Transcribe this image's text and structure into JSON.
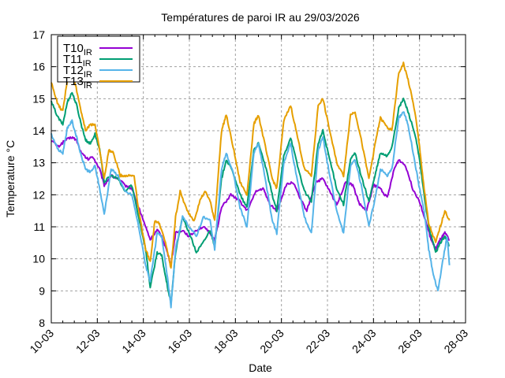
{
  "chart_data": {
    "type": "line",
    "title": "Températures de paroi IR au 29/03/2026",
    "xlabel": "Date",
    "ylabel": "Temperature °C",
    "xlim": [
      0,
      18
    ],
    "ylim": [
      8,
      17
    ],
    "grid": true,
    "legend_position": "top-left",
    "x_ticks": [
      {
        "value": 0,
        "label": "10-03"
      },
      {
        "value": 2,
        "label": "12-03"
      },
      {
        "value": 4,
        "label": "14-03"
      },
      {
        "value": 6,
        "label": "16-03"
      },
      {
        "value": 8,
        "label": "18-03"
      },
      {
        "value": 10,
        "label": "20-03"
      },
      {
        "value": 12,
        "label": "22-03"
      },
      {
        "value": 14,
        "label": "24-03"
      },
      {
        "value": 16,
        "label": "26-03"
      },
      {
        "value": 18,
        "label": "28-03"
      }
    ],
    "y_ticks": [
      "8",
      "9",
      "10",
      "11",
      "12",
      "13",
      "14",
      "15",
      "16",
      "17"
    ],
    "x_unit_note": "days since 10-03",
    "series": [
      {
        "name": "T10",
        "subscript": "IR",
        "color": "#9400d3",
        "points": [
          [
            0,
            13.7
          ],
          [
            0.3,
            13.5
          ],
          [
            0.6,
            13.7
          ],
          [
            0.9,
            13.8
          ],
          [
            1.1,
            13.7
          ],
          [
            1.3,
            13.3
          ],
          [
            1.6,
            13.1
          ],
          [
            1.8,
            13.2
          ],
          [
            2.1,
            12.8
          ],
          [
            2.3,
            12.3
          ],
          [
            2.6,
            12.6
          ],
          [
            2.9,
            12.5
          ],
          [
            3.2,
            12.3
          ],
          [
            3.5,
            12.2
          ],
          [
            3.8,
            11.6
          ],
          [
            4.1,
            11.0
          ],
          [
            4.3,
            10.6
          ],
          [
            4.6,
            10.9
          ],
          [
            4.8,
            10.7
          ],
          [
            5.0,
            10.3
          ],
          [
            5.2,
            9.8
          ],
          [
            5.4,
            10.8
          ],
          [
            5.7,
            10.9
          ],
          [
            6.0,
            10.7
          ],
          [
            6.3,
            10.9
          ],
          [
            6.6,
            11.0
          ],
          [
            6.9,
            10.8
          ],
          [
            7.1,
            10.6
          ],
          [
            7.4,
            11.6
          ],
          [
            7.8,
            12.0
          ],
          [
            8.2,
            11.8
          ],
          [
            8.5,
            11.5
          ],
          [
            8.9,
            12.1
          ],
          [
            9.2,
            12.2
          ],
          [
            9.5,
            11.7
          ],
          [
            9.8,
            11.5
          ],
          [
            10.2,
            12.3
          ],
          [
            10.5,
            12.4
          ],
          [
            10.8,
            11.9
          ],
          [
            11.1,
            11.5
          ],
          [
            11.5,
            12.4
          ],
          [
            11.8,
            12.5
          ],
          [
            12.1,
            12.1
          ],
          [
            12.4,
            11.7
          ],
          [
            12.8,
            12.4
          ],
          [
            13.1,
            12.3
          ],
          [
            13.4,
            11.7
          ],
          [
            13.7,
            11.5
          ],
          [
            14.0,
            12.3
          ],
          [
            14.3,
            12.2
          ],
          [
            14.6,
            11.9
          ],
          [
            14.9,
            12.8
          ],
          [
            15.1,
            13.1
          ],
          [
            15.4,
            12.9
          ],
          [
            15.7,
            12.2
          ],
          [
            16.0,
            11.8
          ],
          [
            16.3,
            11.1
          ],
          [
            16.5,
            10.6
          ],
          [
            16.7,
            10.3
          ],
          [
            16.9,
            10.6
          ],
          [
            17.1,
            10.8
          ],
          [
            17.3,
            10.6
          ]
        ]
      },
      {
        "name": "T11",
        "subscript": "IR",
        "color": "#009e73",
        "points": [
          [
            0,
            14.9
          ],
          [
            0.3,
            14.4
          ],
          [
            0.5,
            14.2
          ],
          [
            0.7,
            14.9
          ],
          [
            0.9,
            15.2
          ],
          [
            1.1,
            14.8
          ],
          [
            1.3,
            14.2
          ],
          [
            1.5,
            13.7
          ],
          [
            1.7,
            13.6
          ],
          [
            1.9,
            13.9
          ],
          [
            2.1,
            13.4
          ],
          [
            2.3,
            12.4
          ],
          [
            2.6,
            12.6
          ],
          [
            2.9,
            12.5
          ],
          [
            3.2,
            12.1
          ],
          [
            3.5,
            12.3
          ],
          [
            3.8,
            11.3
          ],
          [
            4.1,
            10.3
          ],
          [
            4.3,
            9.1
          ],
          [
            4.6,
            10.2
          ],
          [
            4.8,
            10.1
          ],
          [
            5.0,
            9.3
          ],
          [
            5.2,
            8.6
          ],
          [
            5.4,
            10.2
          ],
          [
            5.7,
            11.3
          ],
          [
            6.0,
            10.8
          ],
          [
            6.3,
            10.2
          ],
          [
            6.6,
            10.5
          ],
          [
            6.9,
            10.9
          ],
          [
            7.1,
            10.4
          ],
          [
            7.4,
            12.5
          ],
          [
            7.6,
            13.1
          ],
          [
            7.9,
            12.7
          ],
          [
            8.2,
            12.0
          ],
          [
            8.5,
            11.6
          ],
          [
            8.8,
            13.4
          ],
          [
            9.0,
            13.6
          ],
          [
            9.3,
            12.9
          ],
          [
            9.6,
            12.0
          ],
          [
            9.8,
            11.5
          ],
          [
            10.1,
            13.2
          ],
          [
            10.4,
            13.8
          ],
          [
            10.7,
            12.9
          ],
          [
            11.0,
            12.1
          ],
          [
            11.3,
            11.8
          ],
          [
            11.6,
            13.6
          ],
          [
            11.8,
            14.0
          ],
          [
            12.1,
            13.1
          ],
          [
            12.4,
            12.2
          ],
          [
            12.7,
            11.7
          ],
          [
            13.0,
            13.1
          ],
          [
            13.2,
            13.3
          ],
          [
            13.5,
            12.5
          ],
          [
            13.8,
            11.8
          ],
          [
            14.1,
            12.7
          ],
          [
            14.3,
            13.3
          ],
          [
            14.6,
            13.2
          ],
          [
            14.8,
            13.5
          ],
          [
            15.1,
            14.7
          ],
          [
            15.3,
            15.0
          ],
          [
            15.5,
            14.6
          ],
          [
            15.8,
            13.9
          ],
          [
            16.0,
            13.1
          ],
          [
            16.2,
            12.0
          ],
          [
            16.4,
            11.0
          ],
          [
            16.7,
            10.2
          ],
          [
            16.9,
            10.5
          ],
          [
            17.1,
            10.7
          ],
          [
            17.3,
            10.4
          ]
        ]
      },
      {
        "name": "T12",
        "subscript": "IR",
        "color": "#56b4e9",
        "points": [
          [
            0,
            13.9
          ],
          [
            0.3,
            13.4
          ],
          [
            0.5,
            13.3
          ],
          [
            0.7,
            14.1
          ],
          [
            0.9,
            14.3
          ],
          [
            1.1,
            13.8
          ],
          [
            1.3,
            13.2
          ],
          [
            1.5,
            12.8
          ],
          [
            1.7,
            12.7
          ],
          [
            1.9,
            12.9
          ],
          [
            2.1,
            12.2
          ],
          [
            2.3,
            11.4
          ],
          [
            2.6,
            12.8
          ],
          [
            2.9,
            12.6
          ],
          [
            3.2,
            12.1
          ],
          [
            3.5,
            12.0
          ],
          [
            3.8,
            11.0
          ],
          [
            4.1,
            9.8
          ],
          [
            4.3,
            9.3
          ],
          [
            4.6,
            10.8
          ],
          [
            4.8,
            10.7
          ],
          [
            5.0,
            9.7
          ],
          [
            5.2,
            8.5
          ],
          [
            5.4,
            10.3
          ],
          [
            5.7,
            11.3
          ],
          [
            6.0,
            11.0
          ],
          [
            6.3,
            10.7
          ],
          [
            6.6,
            11.3
          ],
          [
            6.9,
            11.2
          ],
          [
            7.1,
            10.3
          ],
          [
            7.4,
            12.8
          ],
          [
            7.6,
            13.3
          ],
          [
            7.9,
            12.7
          ],
          [
            8.2,
            11.6
          ],
          [
            8.5,
            11.0
          ],
          [
            8.8,
            13.3
          ],
          [
            9.0,
            13.6
          ],
          [
            9.3,
            12.5
          ],
          [
            9.6,
            11.2
          ],
          [
            9.8,
            10.8
          ],
          [
            10.1,
            13.0
          ],
          [
            10.4,
            13.6
          ],
          [
            10.7,
            12.4
          ],
          [
            11.0,
            11.3
          ],
          [
            11.3,
            10.8
          ],
          [
            11.6,
            13.4
          ],
          [
            11.8,
            13.8
          ],
          [
            12.1,
            12.6
          ],
          [
            12.4,
            11.5
          ],
          [
            12.7,
            10.8
          ],
          [
            13.0,
            12.9
          ],
          [
            13.2,
            13.1
          ],
          [
            13.5,
            12.2
          ],
          [
            13.8,
            11.0
          ],
          [
            14.1,
            12.0
          ],
          [
            14.3,
            12.8
          ],
          [
            14.6,
            12.6
          ],
          [
            14.8,
            12.8
          ],
          [
            15.1,
            14.4
          ],
          [
            15.3,
            14.6
          ],
          [
            15.5,
            14.2
          ],
          [
            15.8,
            13.0
          ],
          [
            16.0,
            12.2
          ],
          [
            16.2,
            11.5
          ],
          [
            16.4,
            10.3
          ],
          [
            16.6,
            9.5
          ],
          [
            16.8,
            9.0
          ],
          [
            17.0,
            9.9
          ],
          [
            17.2,
            10.7
          ],
          [
            17.3,
            9.8
          ]
        ]
      },
      {
        "name": "T13",
        "subscript": "IR",
        "color": "#e69f00",
        "points": [
          [
            0,
            15.5
          ],
          [
            0.3,
            14.8
          ],
          [
            0.5,
            14.6
          ],
          [
            0.7,
            15.6
          ],
          [
            0.8,
            16.1
          ],
          [
            1.0,
            15.6
          ],
          [
            1.3,
            14.6
          ],
          [
            1.5,
            14.0
          ],
          [
            1.7,
            14.2
          ],
          [
            1.9,
            14.2
          ],
          [
            2.1,
            13.4
          ],
          [
            2.3,
            12.5
          ],
          [
            2.5,
            13.4
          ],
          [
            2.7,
            13.3
          ],
          [
            3.0,
            12.6
          ],
          [
            3.3,
            12.6
          ],
          [
            3.6,
            12.6
          ],
          [
            3.8,
            11.5
          ],
          [
            4.1,
            10.3
          ],
          [
            4.3,
            9.9
          ],
          [
            4.5,
            11.2
          ],
          [
            4.7,
            11.1
          ],
          [
            5.0,
            10.4
          ],
          [
            5.2,
            9.7
          ],
          [
            5.4,
            11.3
          ],
          [
            5.6,
            12.1
          ],
          [
            5.9,
            11.5
          ],
          [
            6.2,
            11.2
          ],
          [
            6.5,
            11.9
          ],
          [
            6.7,
            12.1
          ],
          [
            6.9,
            11.8
          ],
          [
            7.1,
            11.2
          ],
          [
            7.4,
            14.0
          ],
          [
            7.6,
            14.5
          ],
          [
            7.9,
            13.5
          ],
          [
            8.2,
            12.4
          ],
          [
            8.5,
            12.0
          ],
          [
            8.8,
            14.2
          ],
          [
            9.0,
            14.5
          ],
          [
            9.3,
            13.5
          ],
          [
            9.6,
            12.5
          ],
          [
            9.8,
            12.2
          ],
          [
            10.1,
            14.3
          ],
          [
            10.4,
            14.8
          ],
          [
            10.7,
            13.8
          ],
          [
            11.0,
            12.8
          ],
          [
            11.3,
            12.6
          ],
          [
            11.6,
            14.8
          ],
          [
            11.8,
            15.0
          ],
          [
            12.1,
            14.0
          ],
          [
            12.4,
            13.0
          ],
          [
            12.7,
            12.6
          ],
          [
            13.0,
            14.5
          ],
          [
            13.2,
            14.6
          ],
          [
            13.5,
            13.6
          ],
          [
            13.8,
            12.5
          ],
          [
            14.1,
            13.7
          ],
          [
            14.3,
            14.4
          ],
          [
            14.6,
            14.1
          ],
          [
            14.8,
            14.0
          ],
          [
            15.1,
            15.8
          ],
          [
            15.3,
            16.1
          ],
          [
            15.5,
            15.6
          ],
          [
            15.8,
            14.6
          ],
          [
            16.0,
            13.5
          ],
          [
            16.2,
            12.2
          ],
          [
            16.4,
            11.1
          ],
          [
            16.7,
            10.5
          ],
          [
            16.9,
            11.0
          ],
          [
            17.1,
            11.5
          ],
          [
            17.3,
            11.2
          ]
        ]
      }
    ]
  }
}
